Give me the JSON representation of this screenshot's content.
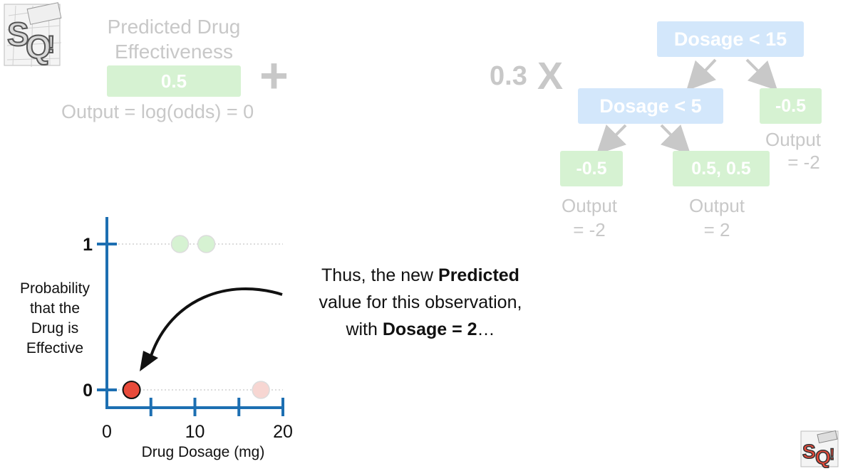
{
  "previous_prediction": {
    "title_line1": "Predicted Drug",
    "title_line2": "Effectiveness",
    "value": "0.5",
    "output_label": "Output = log(odds) = 0",
    "plus_sign": "+"
  },
  "tree": {
    "learning_rate": "0.3",
    "times_sign": "X",
    "root_label": "Dosage < 15",
    "inner_label": "Dosage < 5",
    "leaf_right": {
      "value": "-0.5",
      "output_line1": "Output",
      "output_line2": "= -2"
    },
    "leaf_left": {
      "value": "-0.5",
      "output_line1": "Output",
      "output_line2": "= -2"
    },
    "leaf_middle": {
      "value": "0.5, 0.5",
      "output_line1": "Output",
      "output_line2": "= 2"
    }
  },
  "narration": {
    "line1_pre": "Thus, the new ",
    "line1_bold": "Predicted",
    "line2": "value for this observation,",
    "line3_pre": "with ",
    "line3_bold": "Dosage = 2",
    "line3_post": "…"
  },
  "chart_data": {
    "type": "scatter",
    "xlabel": "Drug Dosage (mg)",
    "ylabel": "Probability that the Drug is Effective",
    "ylabel_lines": [
      "Probability",
      "that the",
      "Drug is",
      "Effective"
    ],
    "x_ticks": [
      "0",
      "10",
      "20"
    ],
    "y_ticks": [
      "0",
      "1"
    ],
    "xlim": [
      0,
      20
    ],
    "ylim": [
      0,
      1
    ],
    "points": [
      {
        "x": 8.3,
        "y": 1,
        "color": "#d6f2d2",
        "highlighted": false
      },
      {
        "x": 11.3,
        "y": 1,
        "color": "#d6f2d2",
        "highlighted": false
      },
      {
        "x": 2.8,
        "y": 0,
        "color": "#e84a3a",
        "highlighted": true
      },
      {
        "x": 17.5,
        "y": 0,
        "color": "#f7d6d2",
        "highlighted": false
      }
    ],
    "grid": "dotted at y=0 and y=1",
    "axis_color": "#1d6fb2"
  }
}
